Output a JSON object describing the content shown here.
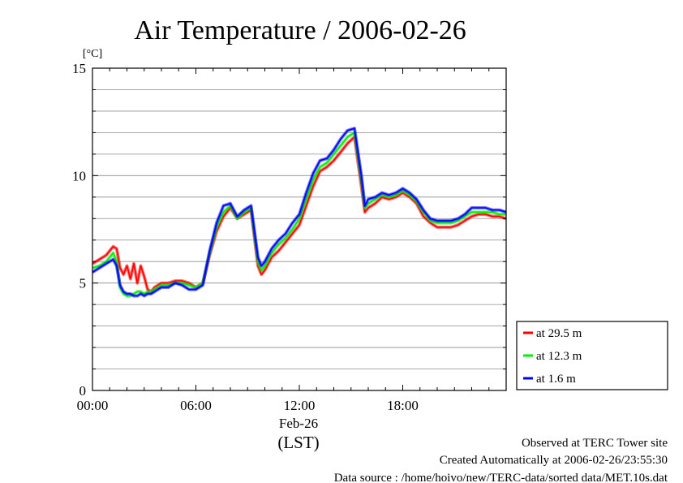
{
  "chart_data": {
    "type": "line",
    "title": "Air Temperature / 2006-02-26",
    "ylabel": "[°C]",
    "xlabel": "(LST)",
    "date_label": "Feb-26",
    "ylim": [
      0,
      15
    ],
    "xlim": [
      0,
      24
    ],
    "yticks": [
      "0",
      "5",
      "10",
      "15"
    ],
    "xticks": [
      "00:00",
      "06:00",
      "12:00",
      "18:00"
    ],
    "grid": true,
    "legend_position": "right-bottom (outside plot)",
    "series": [
      {
        "name": "at 29.5 m",
        "color": "#ff0000",
        "x": [
          0.0,
          0.4,
          0.8,
          1.2,
          1.4,
          1.6,
          1.8,
          2.0,
          2.2,
          2.4,
          2.6,
          2.8,
          3.0,
          3.2,
          3.4,
          3.6,
          3.8,
          4.0,
          4.4,
          4.8,
          5.2,
          5.6,
          6.0,
          6.4,
          6.8,
          7.2,
          7.6,
          8.0,
          8.4,
          8.8,
          9.2,
          9.6,
          9.8,
          10.0,
          10.4,
          10.8,
          11.2,
          11.6,
          12.0,
          12.4,
          12.8,
          13.2,
          13.6,
          14.0,
          14.4,
          14.8,
          15.2,
          15.6,
          15.8,
          16.0,
          16.4,
          16.8,
          17.2,
          17.6,
          18.0,
          18.4,
          18.8,
          19.2,
          19.6,
          20.0,
          20.4,
          20.8,
          21.2,
          21.6,
          22.0,
          22.4,
          22.8,
          23.2,
          23.6,
          24.0
        ],
        "values": [
          5.9,
          6.1,
          6.3,
          6.7,
          6.6,
          5.7,
          5.4,
          5.8,
          5.2,
          5.9,
          5.0,
          5.8,
          5.3,
          4.7,
          4.6,
          4.8,
          4.9,
          5.0,
          5.0,
          5.1,
          5.1,
          5.0,
          4.8,
          5.0,
          6.3,
          7.4,
          8.1,
          8.5,
          8.0,
          8.2,
          8.4,
          5.8,
          5.4,
          5.6,
          6.2,
          6.5,
          6.9,
          7.3,
          7.7,
          8.6,
          9.5,
          10.2,
          10.4,
          10.7,
          11.1,
          11.5,
          11.8,
          9.5,
          8.3,
          8.5,
          8.7,
          9.0,
          8.9,
          9.0,
          9.2,
          9.0,
          8.7,
          8.1,
          7.8,
          7.6,
          7.6,
          7.6,
          7.7,
          7.9,
          8.1,
          8.2,
          8.2,
          8.1,
          8.1,
          8.0
        ]
      },
      {
        "name": "at 12.3 m",
        "color": "#00ee00",
        "x": [
          0.0,
          0.4,
          0.8,
          1.2,
          1.4,
          1.6,
          1.8,
          2.0,
          2.2,
          2.4,
          2.6,
          2.8,
          3.0,
          3.2,
          3.4,
          3.6,
          3.8,
          4.0,
          4.4,
          4.8,
          5.2,
          5.6,
          6.0,
          6.4,
          6.8,
          7.2,
          7.6,
          8.0,
          8.4,
          8.8,
          9.2,
          9.6,
          9.8,
          10.0,
          10.4,
          10.8,
          11.2,
          11.6,
          12.0,
          12.4,
          12.8,
          13.2,
          13.6,
          14.0,
          14.4,
          14.8,
          15.2,
          15.6,
          15.8,
          16.0,
          16.4,
          16.8,
          17.2,
          17.6,
          18.0,
          18.4,
          18.8,
          19.2,
          19.6,
          20.0,
          20.4,
          20.8,
          21.2,
          21.6,
          22.0,
          22.4,
          22.8,
          23.2,
          23.6,
          24.0
        ],
        "values": [
          5.7,
          5.8,
          6.0,
          6.4,
          6.0,
          4.8,
          4.5,
          4.4,
          4.4,
          4.5,
          4.6,
          4.6,
          4.5,
          4.6,
          4.6,
          4.7,
          4.8,
          4.9,
          4.9,
          5.0,
          5.0,
          4.9,
          4.8,
          5.0,
          6.4,
          7.6,
          8.3,
          8.6,
          8.0,
          8.3,
          8.5,
          6.0,
          5.6,
          5.8,
          6.4,
          6.8,
          7.1,
          7.5,
          8.0,
          8.9,
          9.8,
          10.4,
          10.6,
          11.0,
          11.4,
          11.8,
          12.0,
          9.8,
          8.5,
          8.7,
          8.9,
          9.1,
          9.0,
          9.1,
          9.3,
          9.1,
          8.8,
          8.3,
          7.9,
          7.8,
          7.8,
          7.8,
          7.9,
          8.1,
          8.3,
          8.3,
          8.3,
          8.3,
          8.2,
          8.2
        ]
      },
      {
        "name": "at 1.6 m",
        "color": "#0000ff",
        "x": [
          0.0,
          0.4,
          0.8,
          1.2,
          1.4,
          1.6,
          1.8,
          2.0,
          2.2,
          2.4,
          2.6,
          2.8,
          3.0,
          3.2,
          3.4,
          3.6,
          3.8,
          4.0,
          4.4,
          4.8,
          5.2,
          5.6,
          6.0,
          6.4,
          6.8,
          7.2,
          7.6,
          8.0,
          8.4,
          8.8,
          9.2,
          9.6,
          9.8,
          10.0,
          10.4,
          10.8,
          11.2,
          11.6,
          12.0,
          12.4,
          12.8,
          13.2,
          13.6,
          14.0,
          14.4,
          14.8,
          15.2,
          15.6,
          15.8,
          16.0,
          16.4,
          16.8,
          17.2,
          17.6,
          18.0,
          18.4,
          18.8,
          19.2,
          19.6,
          20.0,
          20.4,
          20.8,
          21.2,
          21.6,
          22.0,
          22.4,
          22.8,
          23.2,
          23.6,
          24.0
        ],
        "values": [
          5.5,
          5.7,
          5.9,
          6.1,
          5.8,
          4.9,
          4.6,
          4.5,
          4.5,
          4.4,
          4.4,
          4.5,
          4.4,
          4.5,
          4.5,
          4.6,
          4.7,
          4.8,
          4.8,
          5.0,
          4.9,
          4.7,
          4.7,
          4.9,
          6.5,
          7.8,
          8.6,
          8.7,
          8.1,
          8.4,
          8.6,
          6.2,
          5.8,
          6.0,
          6.6,
          7.0,
          7.3,
          7.8,
          8.2,
          9.2,
          10.1,
          10.7,
          10.8,
          11.2,
          11.7,
          12.1,
          12.2,
          10.0,
          8.6,
          8.9,
          9.0,
          9.2,
          9.1,
          9.2,
          9.4,
          9.2,
          8.9,
          8.4,
          8.0,
          7.9,
          7.9,
          7.9,
          8.0,
          8.2,
          8.5,
          8.5,
          8.5,
          8.4,
          8.4,
          8.3
        ]
      }
    ]
  },
  "footer": {
    "line1": "Observed at TERC Tower site",
    "line2": "Created Automatically at 2006-02-26/23:55:30",
    "line3": "Data source : /home/hoivo/new/TERC-data/sorted  data/MET.10s.dat"
  }
}
